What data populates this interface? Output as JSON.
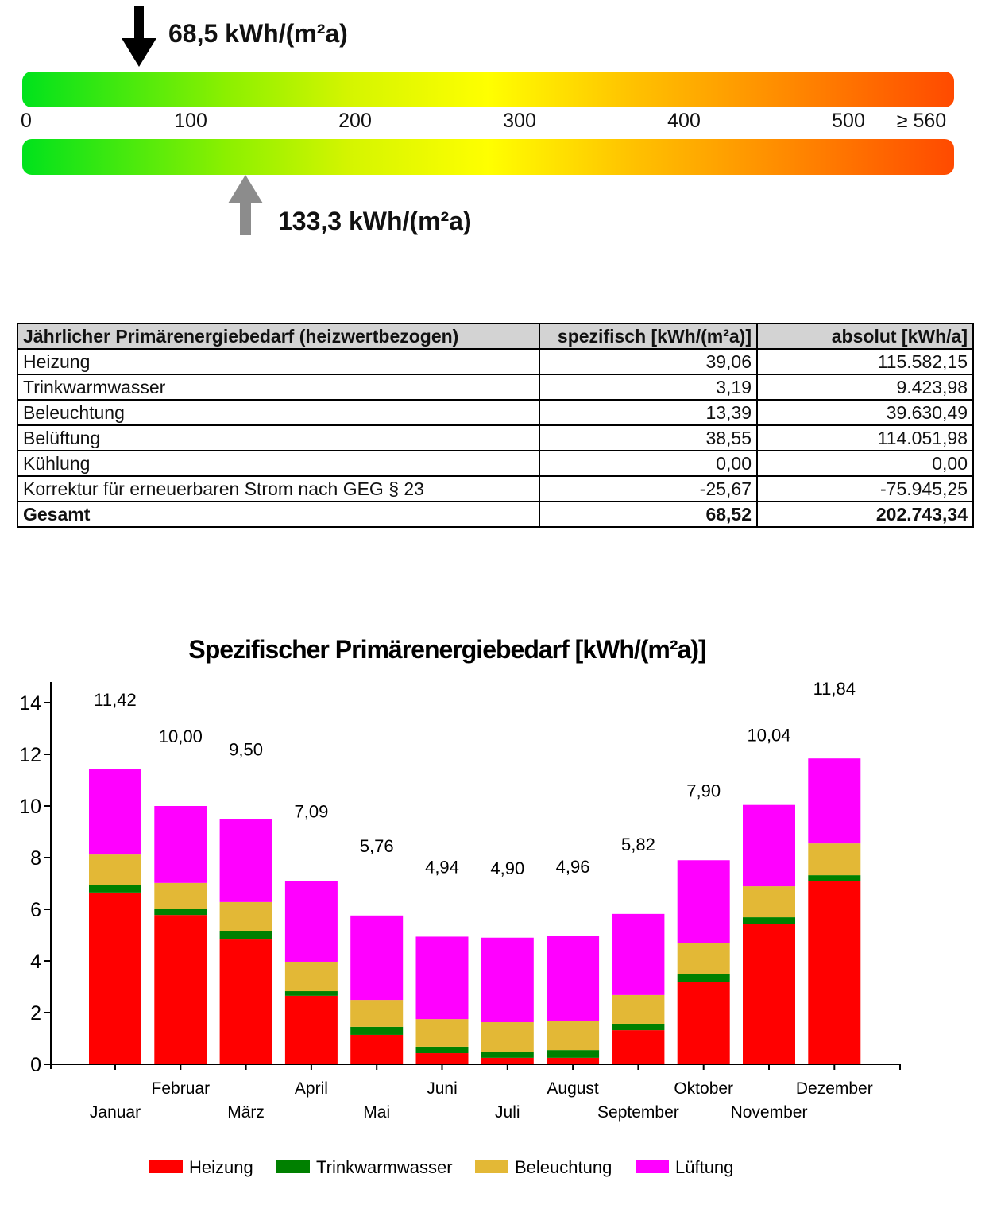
{
  "scale": {
    "min": 0,
    "max": 560,
    "labels": [
      "0",
      "100",
      "200",
      "300",
      "400",
      "500",
      "≥ 560"
    ],
    "label_values": [
      0,
      100,
      200,
      300,
      400,
      500,
      560
    ],
    "actual": {
      "value": 68.5,
      "label": "68,5 kWh/(m²a)",
      "color": "#000000"
    },
    "reference": {
      "value": 133.3,
      "label": "133,3 kWh/(m²a)",
      "color": "#8c8c8c"
    }
  },
  "table": {
    "headers": [
      "Jährlicher Primärenergiebedarf (heizwertbezogen)",
      "spezifisch [kWh/(m²a)]",
      "absolut [kWh/a]"
    ],
    "rows": [
      [
        "Heizung",
        "39,06",
        "115.582,15"
      ],
      [
        "Trinkwarmwasser",
        "3,19",
        "9.423,98"
      ],
      [
        "Beleuchtung",
        "13,39",
        "39.630,49"
      ],
      [
        "Belüftung",
        "38,55",
        "114.051,98"
      ],
      [
        "Kühlung",
        "0,00",
        "0,00"
      ],
      [
        "Korrektur für erneuerbaren Strom nach GEG § 23",
        "-25,67",
        "-75.945,25"
      ]
    ],
    "total": [
      "Gesamt",
      "68,52",
      "202.743,34"
    ]
  },
  "chart_data": {
    "type": "bar",
    "stacked": true,
    "title": "Spezifischer Primärenergiebedarf [kWh/(m²a)]",
    "xlabel": "",
    "ylabel": "",
    "ylim": [
      0,
      14
    ],
    "yticks": [
      0,
      2,
      4,
      6,
      8,
      10,
      12,
      14
    ],
    "categories": [
      "Januar",
      "Februar",
      "März",
      "April",
      "Mai",
      "Juni",
      "Juli",
      "August",
      "September",
      "Oktober",
      "November",
      "Dezember"
    ],
    "totals": [
      11.42,
      10.0,
      9.5,
      7.09,
      5.76,
      4.94,
      4.9,
      4.96,
      5.82,
      7.9,
      10.04,
      11.84
    ],
    "total_labels": [
      "11,42",
      "10,00",
      "9,50",
      "7,09",
      "5,76",
      "4,94",
      "4,90",
      "4,96",
      "5,82",
      "7,90",
      "10,04",
      "11,84"
    ],
    "series": [
      {
        "name": "Heizung",
        "color": "#ff0000",
        "values": [
          6.65,
          5.78,
          4.86,
          2.65,
          1.14,
          0.43,
          0.25,
          0.25,
          1.32,
          3.17,
          5.42,
          7.08
        ]
      },
      {
        "name": "Trinkwarmwasser",
        "color": "#008000",
        "values": [
          0.3,
          0.25,
          0.31,
          0.18,
          0.31,
          0.25,
          0.24,
          0.3,
          0.25,
          0.31,
          0.27,
          0.24
        ]
      },
      {
        "name": "Beleuchtung",
        "color": "#e3b836",
        "values": [
          1.17,
          0.99,
          1.11,
          1.14,
          1.04,
          1.07,
          1.14,
          1.14,
          1.11,
          1.2,
          1.2,
          1.23
        ]
      },
      {
        "name": "Lüftung",
        "color": "#ff00ff",
        "values": [
          3.3,
          2.98,
          3.22,
          3.12,
          3.27,
          3.19,
          3.27,
          3.27,
          3.14,
          3.22,
          3.15,
          3.29
        ]
      }
    ],
    "legend": "bottom"
  }
}
